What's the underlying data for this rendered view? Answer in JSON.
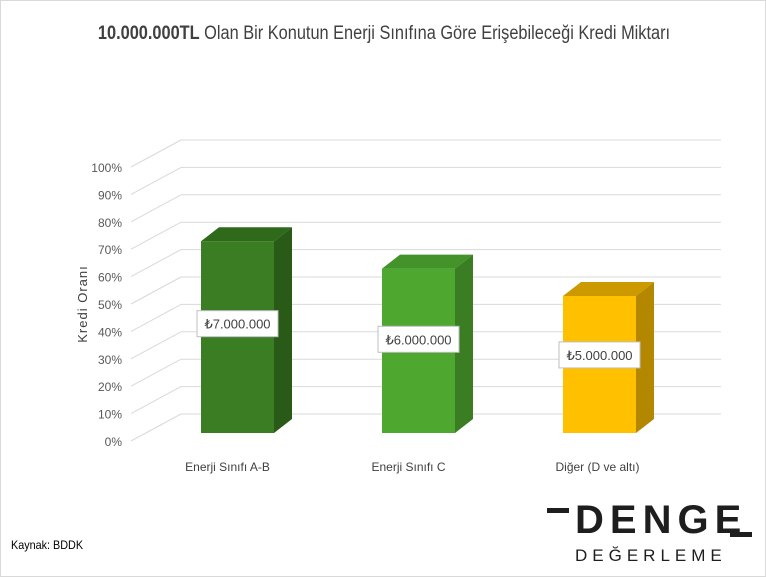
{
  "chart_data": {
    "type": "bar",
    "title_bold": "10.000.000TL",
    "title_rest": "Olan Bir Konutun Enerji Sınıfına Göre Erişebileceği Kredi Miktarı",
    "ylabel": "Kredi Oranı",
    "xlabel": "",
    "ylim": [
      0,
      100
    ],
    "yticks": [
      "0%",
      "10%",
      "20%",
      "30%",
      "40%",
      "50%",
      "60%",
      "70%",
      "80%",
      "90%",
      "100%"
    ],
    "categories": [
      "Enerji Sınıfı A-B",
      "Enerji Sınıfı C",
      "Diğer (D ve altı)"
    ],
    "values": [
      70,
      60,
      50
    ],
    "data_labels": [
      "₺7.000.000",
      "₺6.000.000",
      "₺5.000.000"
    ],
    "colors": [
      {
        "front": "#3a7d22",
        "side": "#2a5a18",
        "top": "#2f6a1b"
      },
      {
        "front": "#4ea72e",
        "side": "#3a7d22",
        "top": "#43932a"
      },
      {
        "front": "#ffc000",
        "side": "#b38700",
        "top": "#cc9a00"
      }
    ],
    "grid": true
  },
  "source": "Kaynak: BDDK",
  "logo": {
    "main": "DENGE",
    "sub": "DEĞERLEME"
  }
}
